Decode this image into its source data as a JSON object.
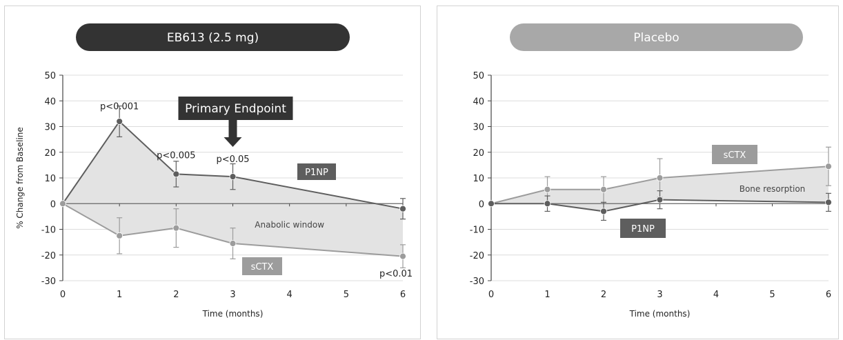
{
  "charts": [
    {
      "title": "EB613 (2.5 mg)",
      "title_bg": "#333333",
      "xlabel": "Time (months)",
      "ylabel": "% Change from Baseline",
      "x_ticks": [
        0,
        1,
        2,
        3,
        4,
        5,
        6
      ],
      "y_ticks": [
        50,
        40,
        30,
        20,
        10,
        0,
        -10,
        -20,
        -30
      ],
      "ylim": [
        -30,
        50
      ],
      "xlim": [
        0,
        6
      ],
      "grid": true,
      "shaded_region_label": "Anabolic window",
      "series": [
        {
          "name": "P1NP",
          "color": "#5e5e5e",
          "x": [
            0,
            1,
            2,
            3,
            6
          ],
          "y": [
            0,
            32,
            11.5,
            10.5,
            -2
          ],
          "err": [
            0,
            6,
            5,
            5,
            4
          ]
        },
        {
          "name": "sCTX",
          "color": "#9c9c9c",
          "x": [
            0,
            1,
            2,
            3,
            6
          ],
          "y": [
            0,
            -12.5,
            -9.5,
            -15.5,
            -20.5
          ],
          "err": [
            0,
            7,
            7.5,
            6,
            4.5
          ]
        }
      ],
      "pvalues": [
        {
          "text": "p<0.001",
          "x": 1,
          "y": 38
        },
        {
          "text": "p<0.005",
          "x": 2,
          "y": 19
        },
        {
          "text": "p<0.05",
          "x": 3,
          "y": 17.5
        },
        {
          "text": "p<0.01",
          "x": 6,
          "y": -27
        }
      ],
      "callout": {
        "text": "Primary Endpoint",
        "x": 3
      }
    },
    {
      "title": "Placebo",
      "title_bg": "#a8a8a8",
      "xlabel": "Time (months)",
      "ylabel": "",
      "x_ticks": [
        0,
        1,
        2,
        3,
        4,
        5,
        6
      ],
      "y_ticks": [
        50,
        40,
        30,
        20,
        10,
        0,
        -10,
        -20,
        -30
      ],
      "ylim": [
        -30,
        50
      ],
      "xlim": [
        0,
        6
      ],
      "grid": true,
      "shaded_region_label": "Bone resorption",
      "series": [
        {
          "name": "sCTX",
          "color": "#9c9c9c",
          "x": [
            0,
            1,
            2,
            3,
            6
          ],
          "y": [
            0,
            5.5,
            5.5,
            10,
            14.5
          ],
          "err": [
            0,
            5,
            5,
            7.5,
            7.5
          ]
        },
        {
          "name": "P1NP",
          "color": "#5e5e5e",
          "x": [
            0,
            1,
            2,
            3,
            6
          ],
          "y": [
            0,
            0,
            -3,
            1.5,
            0.5
          ],
          "err": [
            0,
            3,
            3.5,
            3.5,
            3.5
          ]
        }
      ],
      "pvalues": [],
      "callout": null
    }
  ]
}
